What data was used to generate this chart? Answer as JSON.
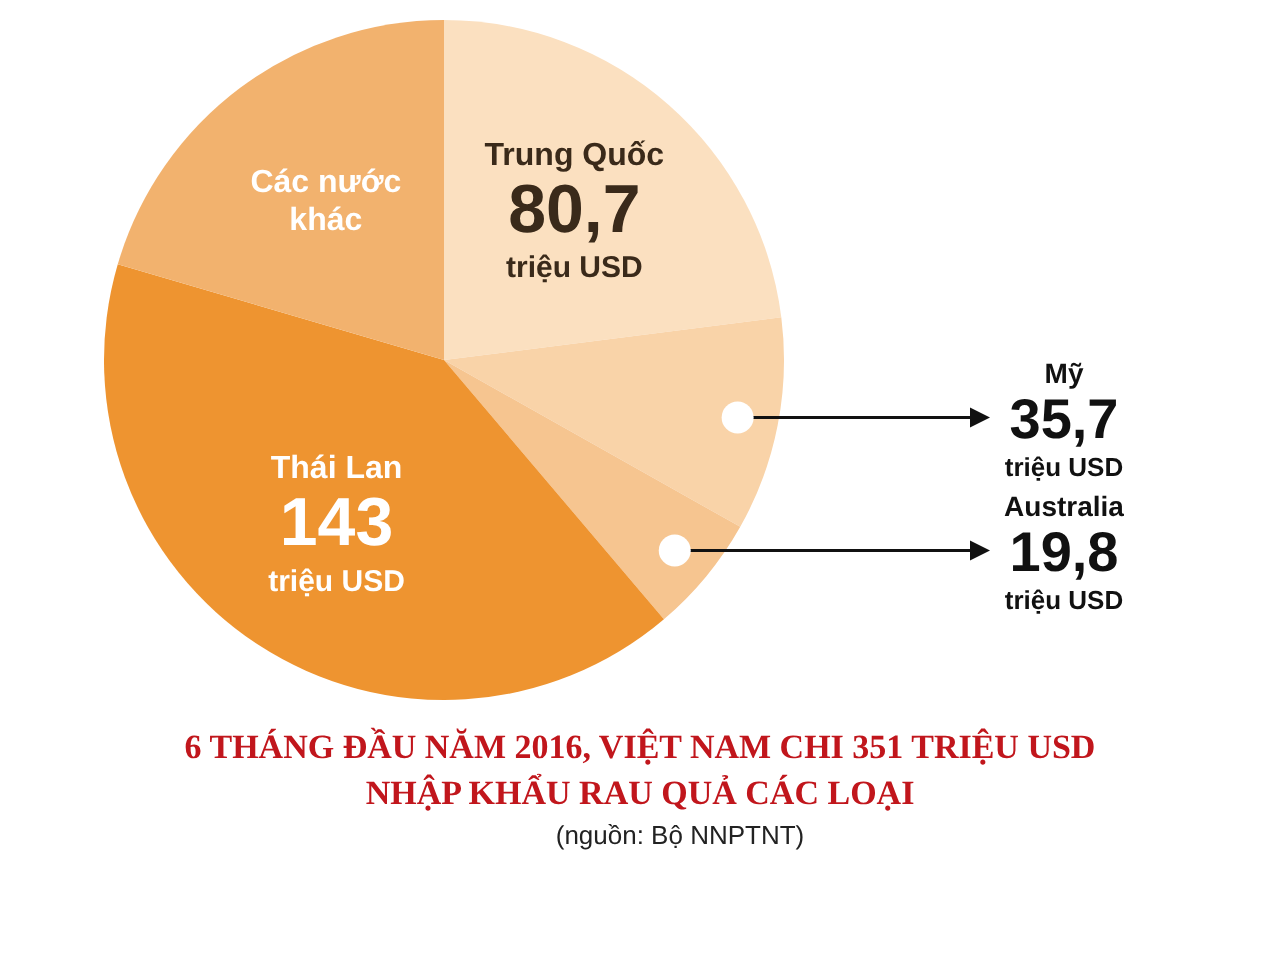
{
  "chart_data": {
    "type": "pie",
    "title": "6 THÁNG ĐẦU NĂM 2016, VIỆT NAM CHI 351 TRIỆU USD\nNHẬP KHẨU RAU QUẢ CÁC LOẠI",
    "categories": [
      "Trung Quốc",
      "Mỹ",
      "Australia",
      "Thái Lan",
      "Các nước\nkhác"
    ],
    "values": [
      80.7,
      35.7,
      19.8,
      143,
      71.8
    ],
    "value_labels": [
      "80,7\ntriệu USD",
      "35,7\ntriệu USD",
      "19,8\ntriệu USD",
      "143\ntriệu USD",
      null
    ],
    "colors": [
      "#fbe0c0",
      "#f9d3a8",
      "#f6c590",
      "#ee9430",
      "#f2b26e"
    ],
    "annotations": [
      "(nguồn: Bộ NNPTNT)"
    ],
    "legend": false
  }
}
